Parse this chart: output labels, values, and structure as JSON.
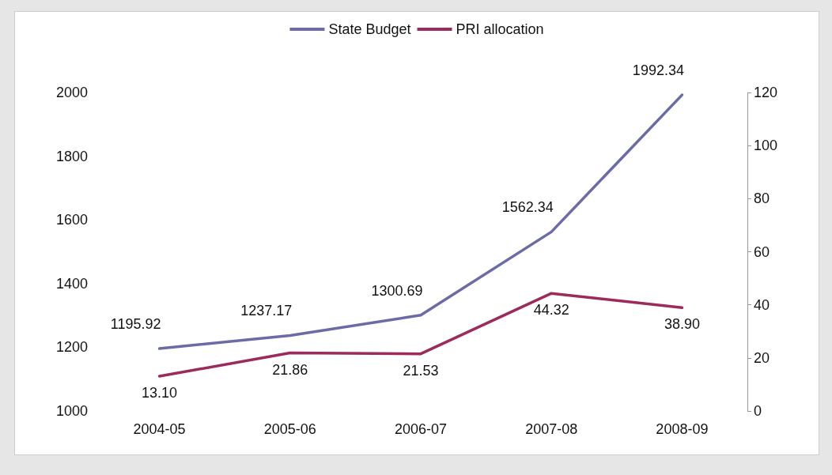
{
  "chart_data": {
    "type": "line",
    "categories": [
      "2004-05",
      "2005-06",
      "2006-07",
      "2007-08",
      "2008-09"
    ],
    "series": [
      {
        "name": "State Budget",
        "color": "#6b6ba8",
        "values": [
          1195.92,
          1237.17,
          1300.69,
          1562.34,
          1992.34
        ],
        "value_labels": [
          "1195.92",
          "1237.17",
          "1300.69",
          "1562.34",
          "1992.34"
        ]
      },
      {
        "name": "PRI allocation",
        "color": "#9c2a5c",
        "axis": "y2",
        "values": [
          13.1,
          21.86,
          21.53,
          44.32,
          38.9
        ],
        "value_labels": [
          "13.10",
          "21.86",
          "21.53",
          "44.32",
          "38.90"
        ]
      }
    ],
    "ylim": [
      1000,
      2000
    ],
    "yticks": [
      1000,
      1200,
      1400,
      1600,
      1800,
      2000
    ],
    "y2lim": [
      0,
      120
    ],
    "y2ticks": [
      0,
      20,
      40,
      60,
      80,
      100,
      120
    ],
    "grid": false,
    "legend": "top",
    "marker": "none",
    "line_style": "solid"
  }
}
